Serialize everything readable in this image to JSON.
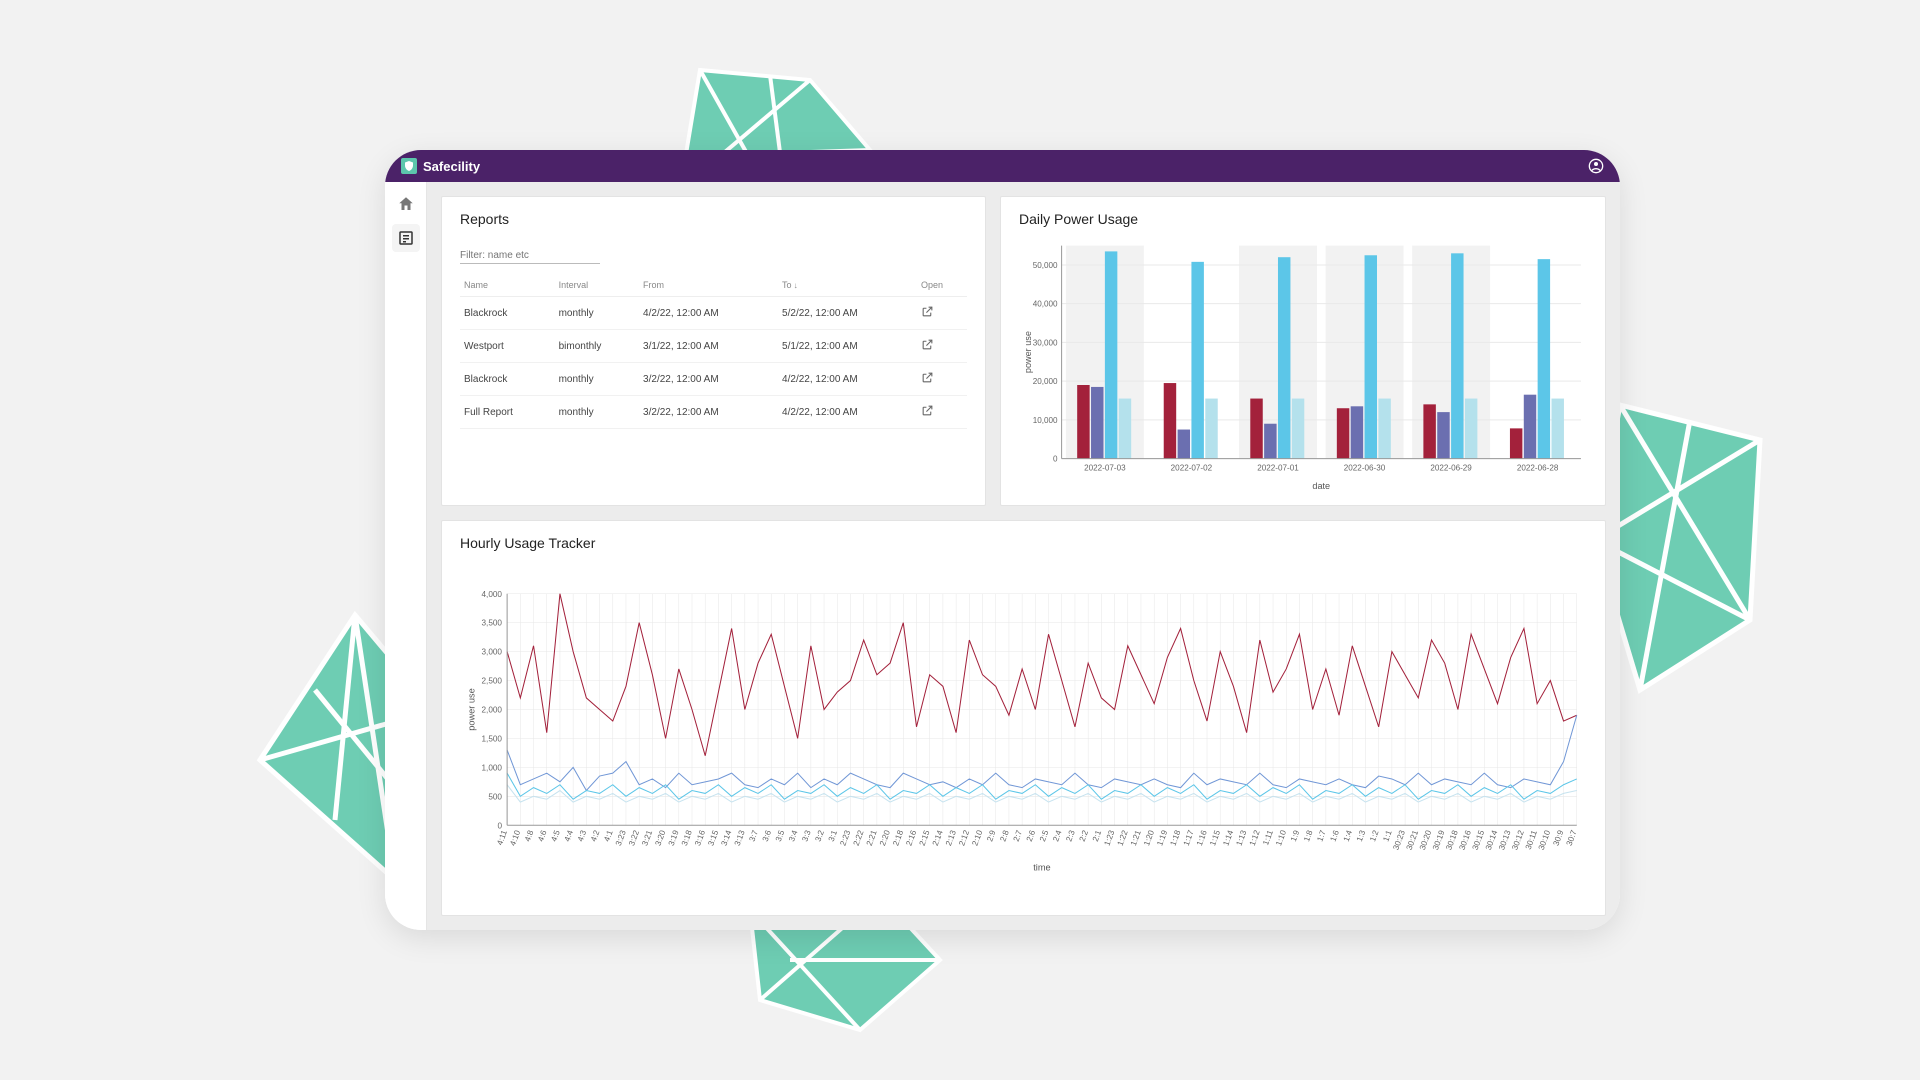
{
  "brand": {
    "name": "Safecility"
  },
  "sidebar": {
    "home": "Home",
    "reports": "Reports"
  },
  "reports": {
    "title": "Reports",
    "filter_placeholder": "Filter: name etc",
    "columns": {
      "name": "Name",
      "interval": "Interval",
      "from": "From",
      "to": "To",
      "open": "Open",
      "sort_by": "to",
      "sort_dir": "desc"
    },
    "rows": [
      {
        "name": "Blackrock",
        "interval": "monthly",
        "from": "4/2/22, 12:00 AM",
        "to": "5/2/22, 12:00 AM"
      },
      {
        "name": "Westport",
        "interval": "bimonthly",
        "from": "3/1/22, 12:00 AM",
        "to": "5/1/22, 12:00 AM"
      },
      {
        "name": "Blackrock",
        "interval": "monthly",
        "from": "3/2/22, 12:00 AM",
        "to": "4/2/22, 12:00 AM"
      },
      {
        "name": "Full Report",
        "interval": "monthly",
        "from": "3/2/22, 12:00 AM",
        "to": "4/2/22, 12:00 AM"
      }
    ]
  },
  "daily_chart": {
    "title": "Daily Power Usage",
    "type": "bar-grouped",
    "ylabel": "power use",
    "xlabel": "date",
    "ylim": [
      0,
      55000
    ],
    "ytick_step": 10000,
    "background_color": "#ffffff",
    "grid_color": "#e9e9e9",
    "band_color": "#f2f2f2",
    "banded_groups": [
      0,
      2,
      3,
      4
    ],
    "series_colors": [
      "#a3213b",
      "#6b6fb0",
      "#5cc6e8",
      "#b4e1ec"
    ],
    "categories": [
      "2022-07-03",
      "2022-07-02",
      "2022-07-01",
      "2022-06-30",
      "2022-06-29",
      "2022-06-28"
    ],
    "values": [
      [
        19000,
        18500,
        53500,
        15500
      ],
      [
        19500,
        7500,
        50800,
        15500
      ],
      [
        15500,
        9000,
        52000,
        15500
      ],
      [
        13000,
        13500,
        52500,
        15500
      ],
      [
        14000,
        12000,
        53000,
        15500
      ],
      [
        7800,
        16500,
        51500,
        15500
      ]
    ],
    "bar_width_ratio": 0.16,
    "group_gap_ratio": 0.2
  },
  "hourly_chart": {
    "title": "Hourly Usage Tracker",
    "type": "line",
    "ylabel": "power use",
    "xlabel": "time",
    "ylim": [
      0,
      4000
    ],
    "ytick_step": 500,
    "grid_color": "#e7e7e7",
    "line_width": 1,
    "series_colors": [
      "#a3213b",
      "#7197d6",
      "#5cc6e8",
      "#c7e3ef"
    ],
    "x_labels": [
      "4:11",
      "4:10",
      "4:8",
      "4:6",
      "4:5",
      "4:4",
      "4:3",
      "4:2",
      "4:1",
      "3:23",
      "3:22",
      "3:21",
      "3:20",
      "3:19",
      "3:18",
      "3:16",
      "3:15",
      "3:14",
      "3:13",
      "3:7",
      "3:6",
      "3:5",
      "3:4",
      "3:3",
      "3:2",
      "3:1",
      "2:23",
      "2:22",
      "2:21",
      "2:20",
      "2:18",
      "2:16",
      "2:15",
      "2:14",
      "2:13",
      "2:12",
      "2:10",
      "2:9",
      "2:8",
      "2:7",
      "2:6",
      "2:5",
      "2:4",
      "2:3",
      "2:2",
      "2:1",
      "1:23",
      "1:22",
      "1:21",
      "1:20",
      "1:19",
      "1:18",
      "1:17",
      "1:16",
      "1:15",
      "1:14",
      "1:13",
      "1:12",
      "1:11",
      "1:10",
      "1:9",
      "1:8",
      "1:7",
      "1:6",
      "1:4",
      "1:3",
      "1:2",
      "1:1",
      "30:23",
      "30:21",
      "30:20",
      "30:19",
      "30:18",
      "30:16",
      "30:15",
      "30:14",
      "30:13",
      "30:12",
      "30:11",
      "30:10",
      "30:9",
      "30:7"
    ],
    "series": [
      [
        3000,
        2200,
        3100,
        1600,
        4100,
        3000,
        2200,
        2000,
        1800,
        2400,
        3500,
        2600,
        1500,
        2700,
        2000,
        1200,
        2300,
        3400,
        2000,
        2800,
        3300,
        2400,
        1500,
        3100,
        2000,
        2300,
        2500,
        3200,
        2600,
        2800,
        3500,
        1700,
        2600,
        2400,
        1600,
        3200,
        2600,
        2400,
        1900,
        2700,
        2000,
        3300,
        2500,
        1700,
        2800,
        2200,
        2000,
        3100,
        2600,
        2100,
        2900,
        3400,
        2500,
        1800,
        3000,
        2400,
        1600,
        3200,
        2300,
        2700,
        3300,
        2000,
        2700,
        1900,
        3100,
        2400,
        1700,
        3000,
        2600,
        2200,
        3200,
        2800,
        2000,
        3300,
        2700,
        2100,
        2900,
        3400,
        2100,
        2500,
        1800,
        1900
      ],
      [
        1300,
        700,
        800,
        900,
        750,
        1000,
        600,
        850,
        900,
        1100,
        700,
        800,
        650,
        900,
        700,
        750,
        800,
        900,
        700,
        650,
        800,
        700,
        900,
        650,
        800,
        700,
        900,
        800,
        700,
        650,
        900,
        800,
        700,
        750,
        650,
        800,
        700,
        900,
        700,
        650,
        800,
        750,
        700,
        900,
        700,
        650,
        800,
        750,
        700,
        800,
        700,
        650,
        900,
        700,
        800,
        750,
        700,
        900,
        700,
        650,
        800,
        750,
        700,
        800,
        700,
        650,
        850,
        800,
        700,
        900,
        700,
        800,
        750,
        700,
        900,
        700,
        650,
        800,
        750,
        700,
        1100,
        1900
      ],
      [
        900,
        500,
        650,
        550,
        700,
        450,
        600,
        550,
        700,
        500,
        650,
        550,
        700,
        450,
        600,
        550,
        700,
        500,
        650,
        550,
        700,
        450,
        600,
        550,
        700,
        500,
        650,
        550,
        700,
        450,
        600,
        550,
        700,
        500,
        650,
        550,
        700,
        450,
        600,
        550,
        700,
        500,
        650,
        550,
        700,
        450,
        600,
        550,
        700,
        500,
        650,
        550,
        700,
        450,
        600,
        550,
        700,
        500,
        650,
        550,
        700,
        450,
        600,
        550,
        700,
        500,
        650,
        550,
        700,
        450,
        600,
        550,
        700,
        500,
        650,
        550,
        700,
        450,
        600,
        550,
        700,
        800
      ],
      [
        700,
        400,
        500,
        450,
        600,
        400,
        500,
        450,
        550,
        400,
        500,
        450,
        550,
        400,
        500,
        450,
        550,
        400,
        500,
        450,
        550,
        400,
        500,
        450,
        550,
        400,
        500,
        450,
        550,
        400,
        500,
        450,
        550,
        400,
        500,
        450,
        550,
        400,
        500,
        450,
        550,
        400,
        500,
        450,
        550,
        400,
        500,
        450,
        550,
        400,
        500,
        450,
        550,
        400,
        500,
        450,
        550,
        400,
        500,
        450,
        550,
        400,
        500,
        450,
        550,
        400,
        500,
        450,
        550,
        400,
        500,
        450,
        550,
        400,
        500,
        450,
        550,
        400,
        500,
        450,
        550,
        600
      ]
    ]
  },
  "palette": {
    "purple": "#4b2268",
    "teal": "#6ecdb3",
    "card_border": "#e3e3e3",
    "body_bg": "#f2f2f2"
  }
}
